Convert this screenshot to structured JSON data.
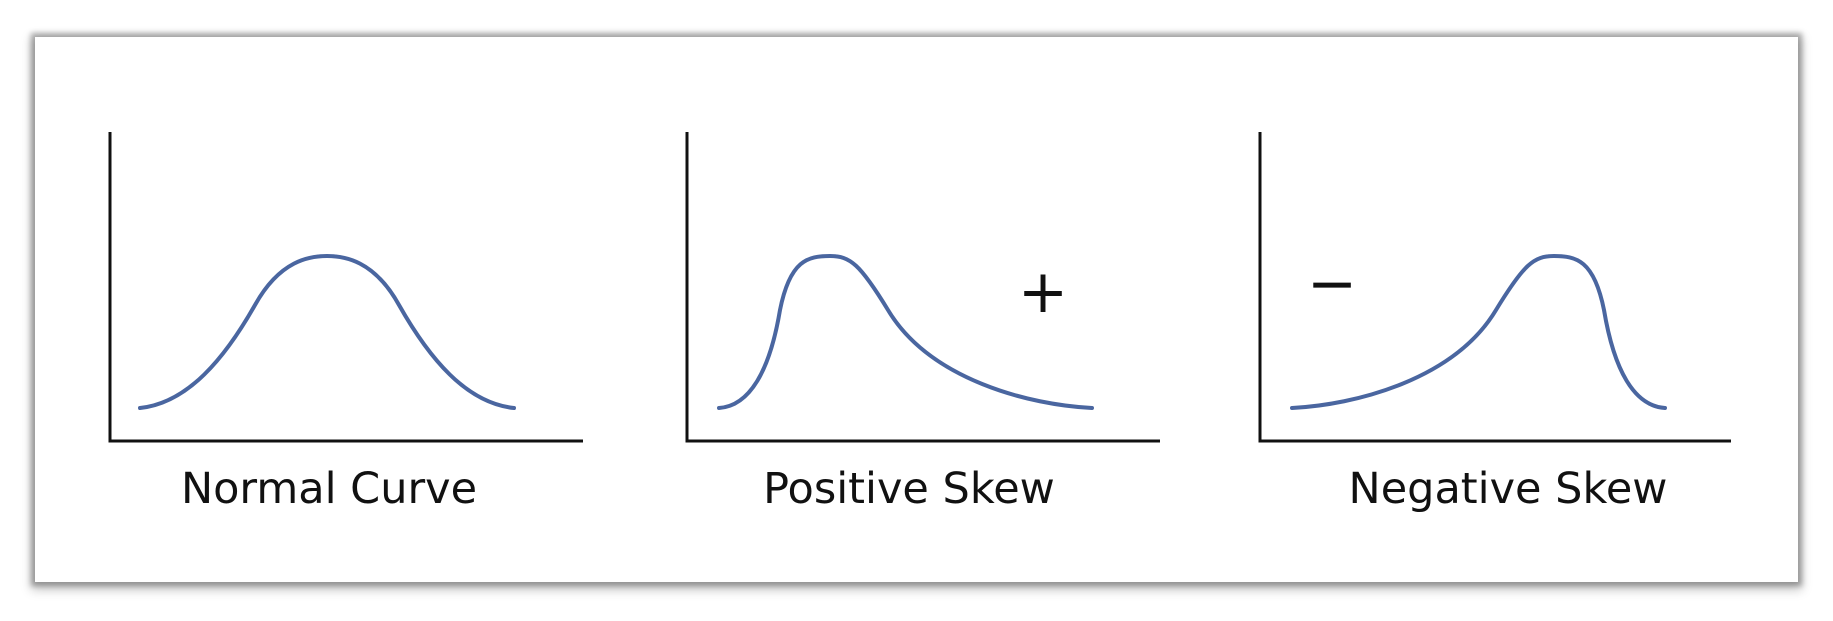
{
  "panels": [
    {
      "id": "normal",
      "caption": "Normal Curve",
      "sign": ""
    },
    {
      "id": "positive",
      "caption": "Positive Skew",
      "sign": "+"
    },
    {
      "id": "negative",
      "caption": "Negative Skew",
      "sign": "−"
    }
  ],
  "colors": {
    "curve": "#4a66a0",
    "axis": "#111111",
    "text": "#111111"
  }
}
